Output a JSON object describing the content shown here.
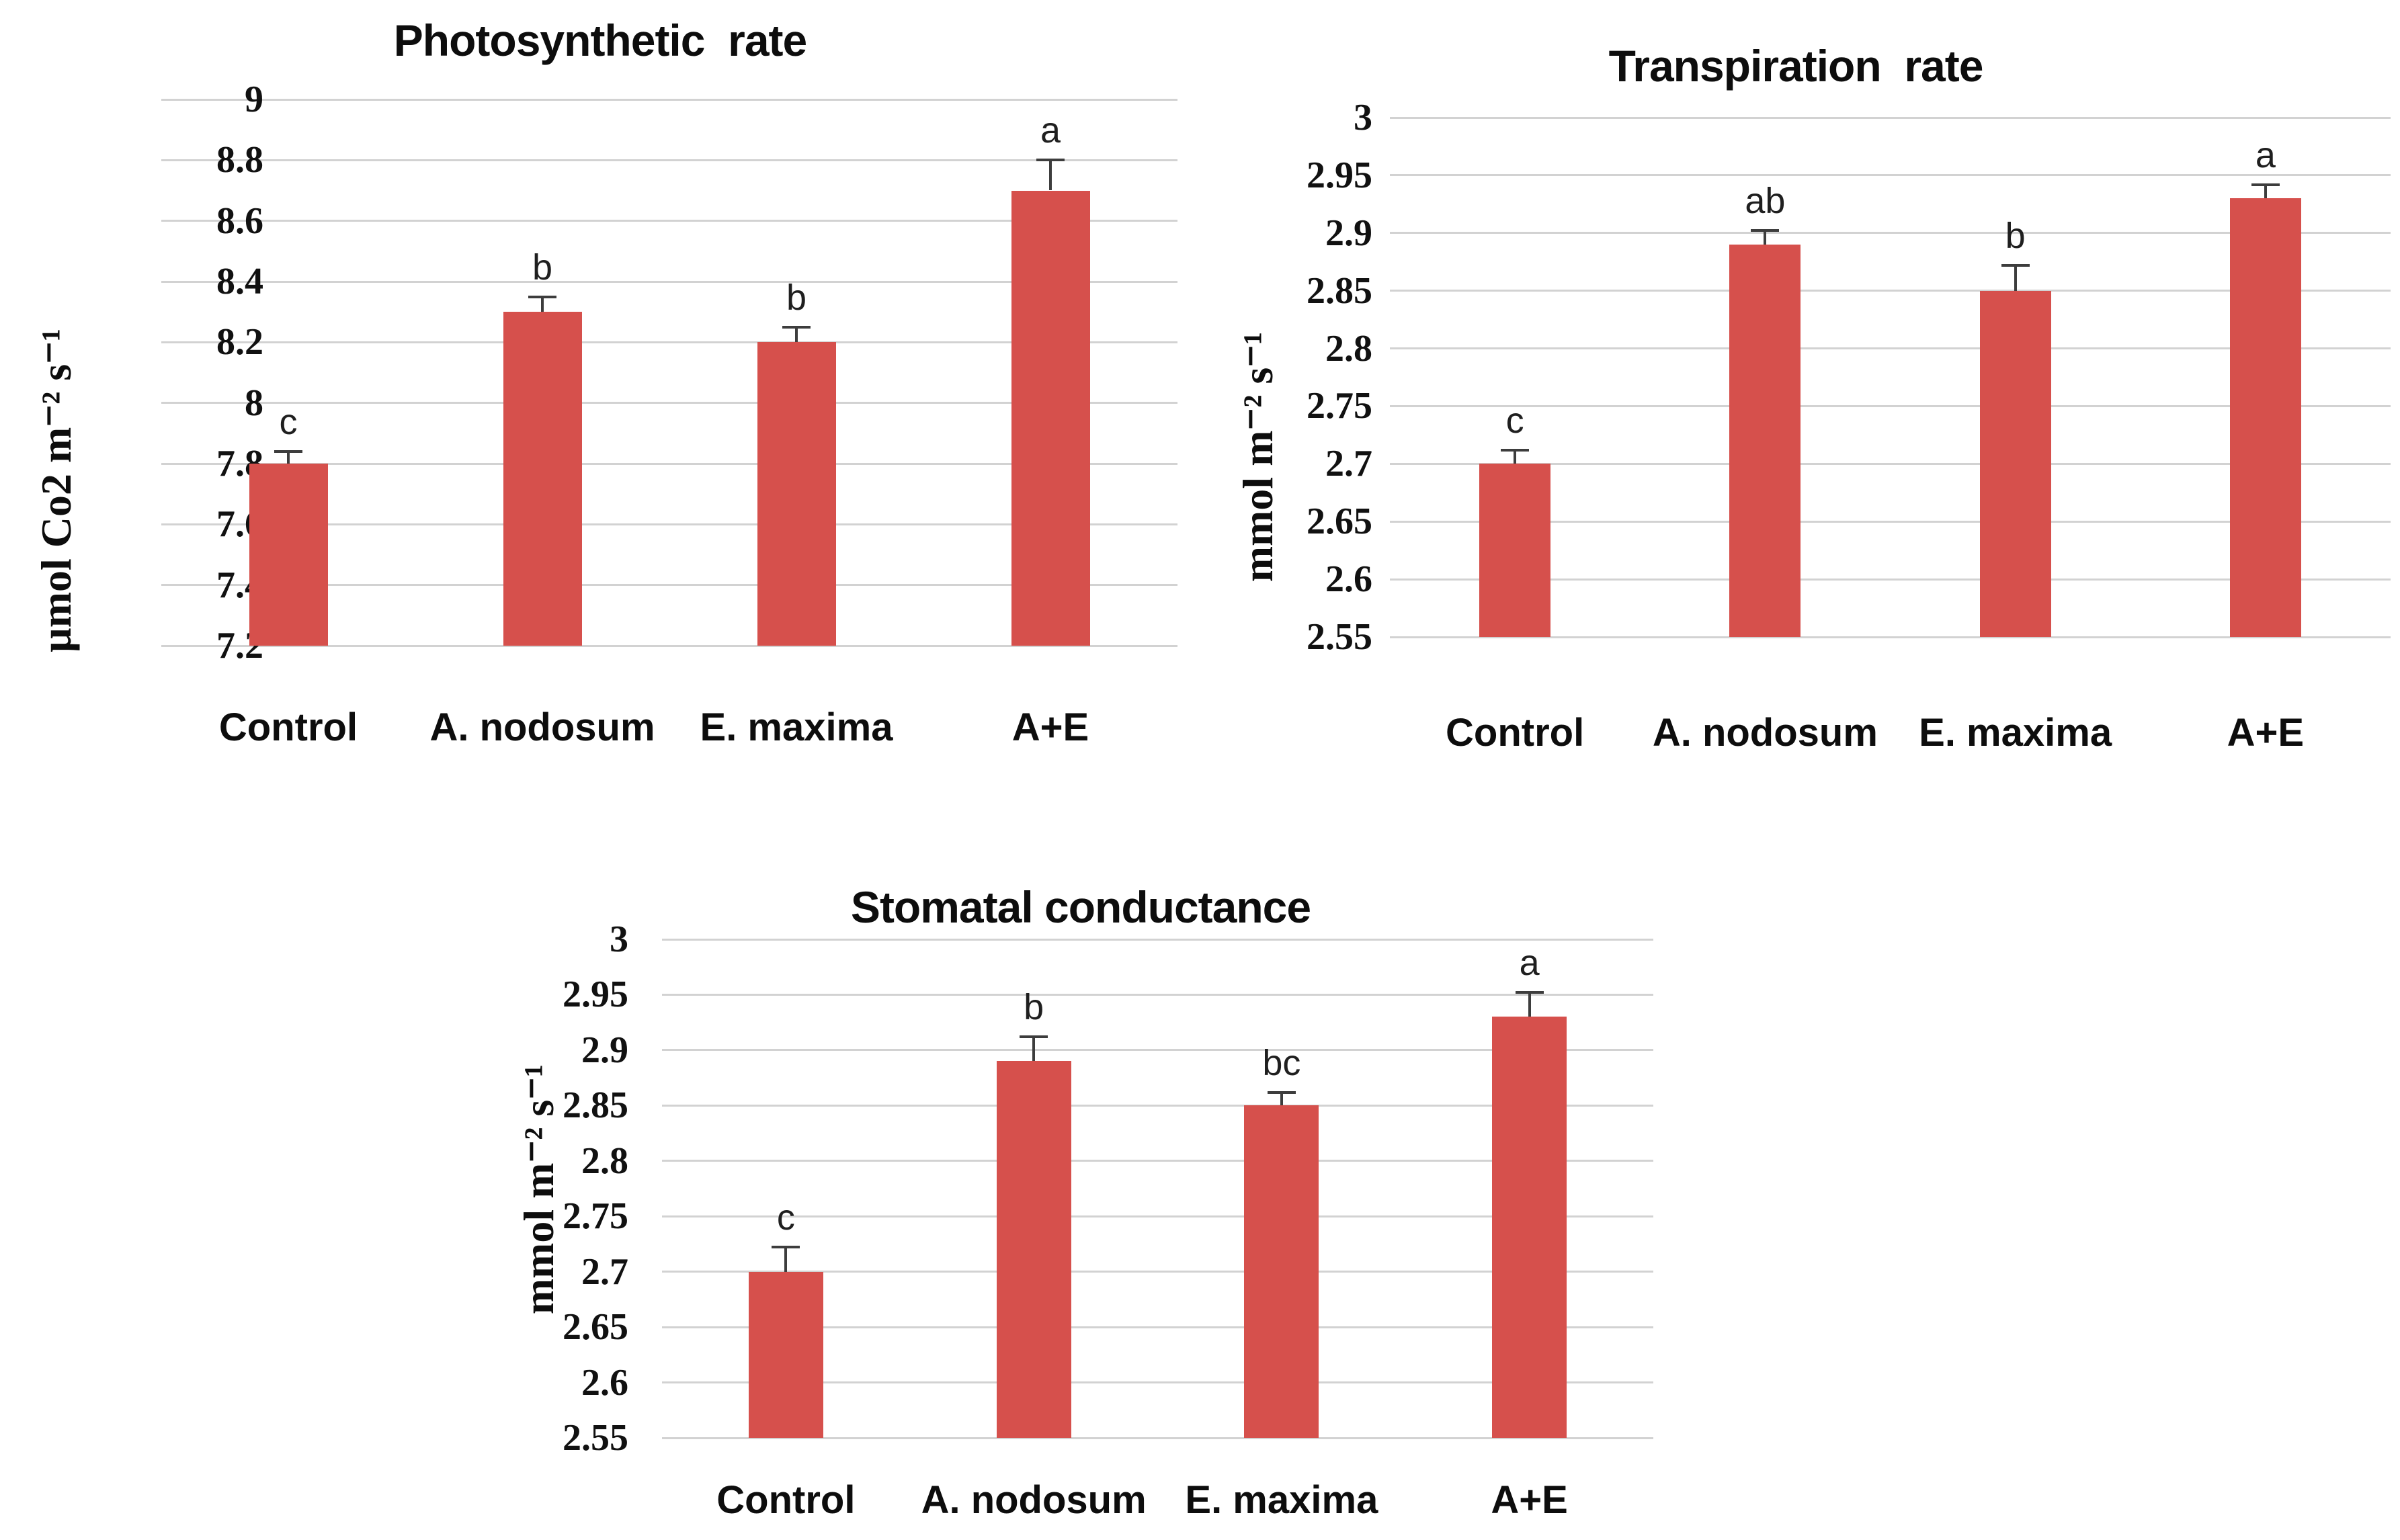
{
  "figure": {
    "background_color": "#ffffff",
    "bar_color": "#d6504c",
    "gridline_color": "#d2d2d2",
    "error_bar_color": "#3d3d3d",
    "text_color": "#0d0d0d"
  },
  "chart_data": [
    {
      "type": "bar",
      "title": "Photosynthetic  rate",
      "ylabel": "µmol Co2 m⁻² s⁻¹",
      "xlabel": "",
      "categories": [
        "Control",
        "A. nodosum",
        "E. maxima",
        "A+E"
      ],
      "values": [
        7.8,
        8.3,
        8.2,
        8.7
      ],
      "errors_plus": [
        0.04,
        0.05,
        0.05,
        0.1
      ],
      "sig_letters": [
        "c",
        "b",
        "b",
        "a"
      ],
      "ylim": [
        7.2,
        9.0
      ],
      "ytick_labels": [
        "7.2",
        "7.4",
        "7.6",
        "7.8",
        "8",
        "8.2",
        "8.4",
        "8.6",
        "8.8",
        "9"
      ],
      "grid": "horizontal major on",
      "legend": "none",
      "bar_color": "#d6504c"
    },
    {
      "type": "bar",
      "title": "Transpiration  rate",
      "ylabel": "mmol m⁻² s⁻¹",
      "xlabel": "",
      "categories": [
        "Control",
        "A. nodosum",
        "E. maxima",
        "A+E"
      ],
      "values": [
        2.7,
        2.89,
        2.85,
        2.93
      ],
      "errors_plus": [
        0.012,
        0.012,
        0.022,
        0.012
      ],
      "sig_letters": [
        "c",
        "ab",
        "b",
        "a"
      ],
      "ylim": [
        2.55,
        3.0
      ],
      "ytick_labels": [
        "2.55",
        "2.6",
        "2.65",
        "2.7",
        "2.75",
        "2.8",
        "2.85",
        "2.9",
        "2.95",
        "3"
      ],
      "grid": "horizontal major on",
      "legend": "none",
      "bar_color": "#d6504c"
    },
    {
      "type": "bar",
      "title": "Stomatal conductance",
      "ylabel": "mmol m⁻² s⁻¹",
      "xlabel": "",
      "categories": [
        "Control",
        "A. nodosum",
        "E. maxima",
        "A+E"
      ],
      "values": [
        2.7,
        2.89,
        2.85,
        2.93
      ],
      "errors_plus": [
        0.022,
        0.022,
        0.012,
        0.022
      ],
      "sig_letters": [
        "c",
        "b",
        "bc",
        "a"
      ],
      "ylim": [
        2.55,
        3.0
      ],
      "ytick_labels": [
        "2.55",
        "2.6",
        "2.65",
        "2.7",
        "2.75",
        "2.8",
        "2.85",
        "2.9",
        "2.95",
        "3"
      ],
      "grid": "horizontal major on",
      "legend": "none",
      "bar_color": "#d6504c"
    }
  ]
}
